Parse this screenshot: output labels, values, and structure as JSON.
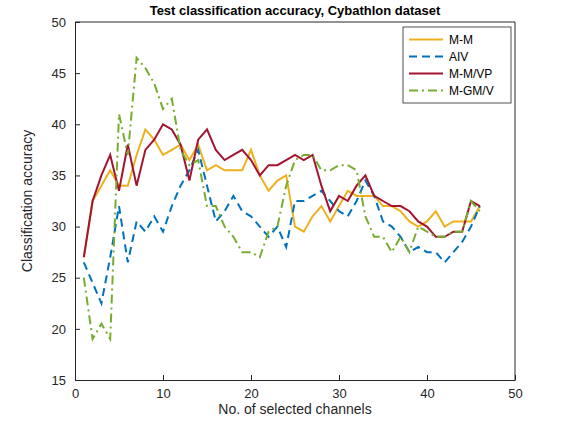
{
  "chart_data": {
    "type": "line",
    "title": "Test classification accuracy, Cybathlon dataset",
    "x_label": "No. of selected channels",
    "y_label": "Classification accuracy",
    "x": [
      1,
      2,
      3,
      4,
      5,
      6,
      7,
      8,
      9,
      10,
      11,
      12,
      13,
      14,
      15,
      16,
      17,
      18,
      19,
      20,
      21,
      22,
      23,
      24,
      25,
      26,
      27,
      28,
      29,
      30,
      31,
      32,
      33,
      34,
      35,
      36,
      37,
      38,
      39,
      40,
      41,
      42,
      43,
      44,
      45,
      46
    ],
    "series": [
      {
        "name": "M-M",
        "color": "#EDB120",
        "line_style": "solid",
        "values": [
          27,
          32.5,
          34,
          35.5,
          34,
          34,
          37,
          39.5,
          38.5,
          37,
          37.5,
          38,
          36.5,
          38,
          35.5,
          36,
          35.5,
          35.5,
          35.5,
          37.5,
          35,
          33.5,
          34.5,
          35,
          30,
          29.5,
          31,
          32,
          30.5,
          32,
          33.5,
          33,
          33,
          33,
          32,
          32,
          31.5,
          30.5,
          30,
          30.5,
          31.5,
          30,
          30.5,
          30.5,
          30.5,
          32
        ]
      },
      {
        "name": "AIV",
        "color": "#0072BD",
        "line_style": "dashed",
        "values": [
          26.5,
          24.5,
          22.5,
          27,
          32,
          26.5,
          30.5,
          29.5,
          31,
          29.5,
          32,
          34,
          35.5,
          37.5,
          34,
          30.5,
          31.5,
          33,
          31.5,
          31,
          30,
          29,
          30,
          28,
          32.5,
          32.5,
          33,
          33.5,
          32.5,
          31.5,
          31,
          32.5,
          34.5,
          33,
          30.5,
          30,
          29,
          27.5,
          28,
          27.5,
          27.5,
          26.5,
          27.5,
          28.5,
          30,
          32
        ]
      },
      {
        "name": "M-M/VP",
        "color": "#A2142F",
        "line_style": "solid",
        "values": [
          27,
          32.5,
          35,
          37,
          33.5,
          38,
          34,
          37.5,
          38.5,
          40,
          39.5,
          38,
          34.5,
          38.5,
          39.5,
          37.5,
          36.5,
          37,
          37.5,
          36.5,
          35,
          36,
          36,
          36.5,
          37,
          36.5,
          37,
          34,
          31.5,
          33,
          32.5,
          34,
          35,
          33,
          32.5,
          32,
          32,
          31.5,
          30.5,
          30,
          29,
          29,
          29.5,
          29.5,
          32.5,
          32
        ]
      },
      {
        "name": "M-GM/V",
        "color": "#77AC30",
        "line_style": "dashdot",
        "values": [
          25,
          19,
          20.5,
          19,
          41,
          37,
          46.5,
          45.5,
          44,
          41.5,
          42.5,
          37.5,
          36,
          36.5,
          32,
          32,
          30,
          29,
          27.5,
          27.5,
          27,
          29.5,
          30,
          34,
          36.5,
          37,
          37,
          35.5,
          35.5,
          36,
          36,
          35.5,
          31,
          29,
          29,
          27.5,
          29,
          27.5,
          30,
          29.5,
          29,
          29,
          29.5,
          29.5,
          32.5,
          31.5
        ]
      }
    ],
    "xlim": [
      0,
      50
    ],
    "xticks": [
      0,
      10,
      20,
      30,
      40,
      50
    ],
    "ylim": [
      15,
      50
    ],
    "yticks": [
      15,
      20,
      25,
      30,
      35,
      40,
      45,
      50
    ],
    "grid": false,
    "legend": "northeast"
  }
}
